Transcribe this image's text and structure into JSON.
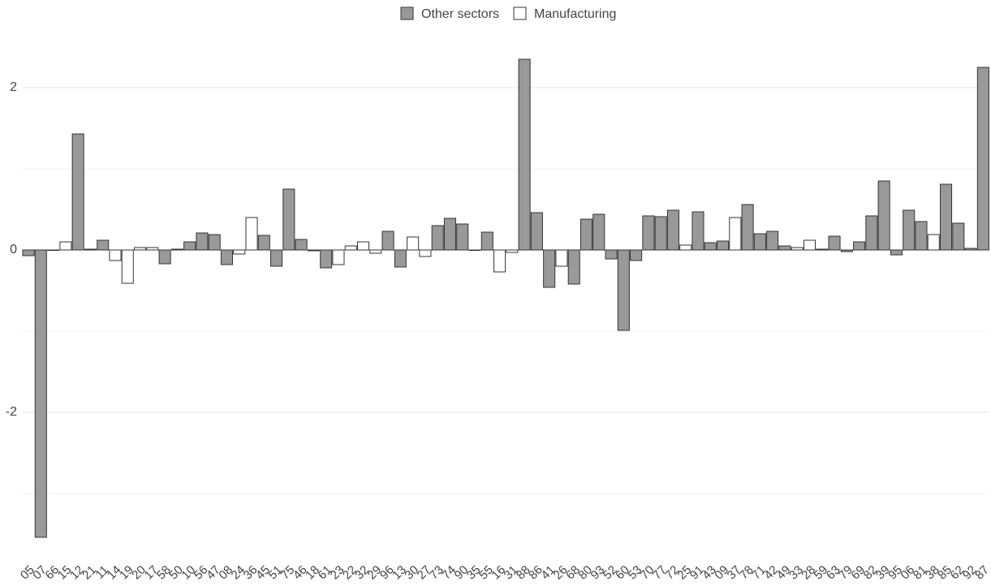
{
  "chart_data": {
    "type": "bar",
    "categories": [
      "05",
      "07",
      "66",
      "15",
      "12",
      "21",
      "11",
      "14",
      "19",
      "20",
      "17",
      "58",
      "50",
      "10",
      "56",
      "47",
      "08",
      "24",
      "36",
      "45",
      "51",
      "75",
      "46",
      "18",
      "61",
      "23",
      "22",
      "32",
      "29",
      "96",
      "13",
      "30",
      "27",
      "73",
      "74",
      "90",
      "35",
      "55",
      "16",
      "31",
      "88",
      "86",
      "41",
      "26",
      "68",
      "80",
      "93",
      "52",
      "60",
      "53",
      "70",
      "77",
      "72",
      "25",
      "91",
      "43",
      "09",
      "37",
      "78",
      "71",
      "42",
      "49",
      "33",
      "28",
      "59",
      "63",
      "79",
      "69",
      "82",
      "39",
      "95",
      "06",
      "81",
      "38",
      "85",
      "62",
      "92",
      "87"
    ],
    "series": [
      {
        "name": "Other sectors",
        "color": "#999999",
        "values": [
          -0.07,
          -3.54,
          null,
          null,
          1.43,
          0.01,
          0.12,
          null,
          null,
          null,
          null,
          -0.17,
          0.01,
          0.1,
          0.21,
          0.19,
          -0.18,
          null,
          null,
          0.18,
          -0.2,
          0.75,
          0.13,
          -0.01,
          -0.22,
          null,
          null,
          null,
          null,
          0.23,
          -0.21,
          null,
          null,
          0.3,
          0.39,
          0.32,
          null,
          0.22,
          null,
          null,
          2.35,
          0.46,
          -0.46,
          null,
          -0.42,
          0.38,
          0.44,
          -0.11,
          -0.99,
          -0.13,
          0.42,
          0.41,
          0.49,
          null,
          0.47,
          0.09,
          0.11,
          null,
          0.56,
          0.2,
          0.23,
          0.05,
          null,
          null,
          0.01,
          0.17,
          -0.02,
          0.1,
          0.42,
          0.85,
          -0.06,
          0.49,
          0.35,
          null,
          0.81,
          0.33,
          0.02,
          2.25
        ]
      },
      {
        "name": "Manufacturing",
        "color": "#ffffff",
        "values": [
          null,
          null,
          0,
          0.1,
          null,
          null,
          null,
          -0.13,
          -0.41,
          0.03,
          0.03,
          null,
          null,
          null,
          null,
          null,
          null,
          -0.05,
          0.4,
          null,
          null,
          null,
          null,
          null,
          null,
          -0.18,
          0.05,
          0.1,
          -0.04,
          null,
          null,
          0.16,
          -0.08,
          null,
          null,
          null,
          0,
          null,
          -0.27,
          -0.03,
          null,
          null,
          null,
          -0.2,
          null,
          null,
          null,
          null,
          null,
          null,
          null,
          null,
          null,
          0.06,
          null,
          null,
          null,
          0.4,
          null,
          null,
          null,
          null,
          0.03,
          0.12,
          null,
          null,
          null,
          null,
          null,
          null,
          null,
          null,
          null,
          0.19,
          null,
          null,
          null,
          null
        ]
      }
    ],
    "ylim": [
      -3.7,
      2.5
    ],
    "yticks": [
      -2,
      0,
      2
    ],
    "y_minor_ticks": [
      -3,
      -1,
      1
    ],
    "grid": true
  }
}
